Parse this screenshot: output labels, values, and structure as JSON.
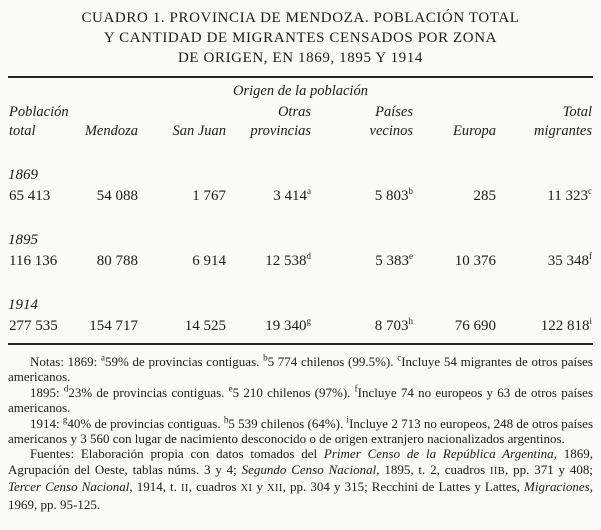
{
  "title": {
    "lines": [
      "CUADRO 1. PROVINCIA DE MENDOZA. POBLACIÓN TOTAL",
      "Y CANTIDAD DE MIGRANTES CENSADOS POR ZONA",
      "DE ORIGEN, EN 1869, 1895 Y 1914"
    ]
  },
  "table": {
    "span_header": "Origen de la población",
    "columns": [
      {
        "top": "Población",
        "bottom": "total"
      },
      {
        "top": "",
        "bottom": "Mendoza"
      },
      {
        "top": "",
        "bottom": "San Juan"
      },
      {
        "top": "Otras",
        "bottom": "provincias"
      },
      {
        "top": "Países",
        "bottom": "vecinos"
      },
      {
        "top": "",
        "bottom": "Europa"
      },
      {
        "top": "Total",
        "bottom": "migrantes"
      }
    ],
    "rows": [
      {
        "year": "1869",
        "cells": [
          {
            "value": "65 413",
            "sup": ""
          },
          {
            "value": "54 088",
            "sup": ""
          },
          {
            "value": "1 767",
            "sup": ""
          },
          {
            "value": "3 414",
            "sup": "a"
          },
          {
            "value": "5 803",
            "sup": "b"
          },
          {
            "value": "285",
            "sup": ""
          },
          {
            "value": "11 323",
            "sup": "c"
          }
        ]
      },
      {
        "year": "1895",
        "cells": [
          {
            "value": "116 136",
            "sup": ""
          },
          {
            "value": "80 788",
            "sup": ""
          },
          {
            "value": "6 914",
            "sup": ""
          },
          {
            "value": "12 538",
            "sup": "d"
          },
          {
            "value": "5 383",
            "sup": "e"
          },
          {
            "value": "10 376",
            "sup": ""
          },
          {
            "value": "35 348",
            "sup": "f"
          }
        ]
      },
      {
        "year": "1914",
        "cells": [
          {
            "value": "277 535",
            "sup": ""
          },
          {
            "value": "154 717",
            "sup": ""
          },
          {
            "value": "14 525",
            "sup": ""
          },
          {
            "value": "19 340",
            "sup": "g"
          },
          {
            "value": "8 703",
            "sup": "h"
          },
          {
            "value": "76 690",
            "sup": ""
          },
          {
            "value": "122 818",
            "sup": "i"
          }
        ]
      }
    ]
  },
  "notes": [
    [
      {
        "t": "Notas: 1869: ",
        "s": "n"
      },
      {
        "t": "a",
        "s": "sup"
      },
      {
        "t": "59% de provincias contiguas. ",
        "s": "n"
      },
      {
        "t": "b",
        "s": "sup"
      },
      {
        "t": "5 774 chilenos (99.5%). ",
        "s": "n"
      },
      {
        "t": "c",
        "s": "sup"
      },
      {
        "t": "Incluye 54 migrantes de otros países americanos.",
        "s": "n"
      }
    ],
    [
      {
        "t": "1895: ",
        "s": "n"
      },
      {
        "t": "d",
        "s": "sup"
      },
      {
        "t": "23% de provincias contiguas. ",
        "s": "n"
      },
      {
        "t": "e",
        "s": "sup"
      },
      {
        "t": "5 210 chilenos (97%). ",
        "s": "n"
      },
      {
        "t": "f",
        "s": "sup"
      },
      {
        "t": "Incluye 74 no europeos y 63 de otros países americanos.",
        "s": "n"
      }
    ],
    [
      {
        "t": "1914: ",
        "s": "n"
      },
      {
        "t": "g",
        "s": "sup"
      },
      {
        "t": "40% de provincias contiguas. ",
        "s": "n"
      },
      {
        "t": "h",
        "s": "sup"
      },
      {
        "t": "5 539 chilenos (64%). ",
        "s": "n"
      },
      {
        "t": "i",
        "s": "sup"
      },
      {
        "t": "Incluye 2 713 no europeos, 248 de otros países americanos y 3 560 con lugar de nacimiento desconocido o de origen extranjero nacionalizados argentinos.",
        "s": "n"
      }
    ],
    [
      {
        "t": "Fuentes: Elaboración propia con datos tomados del ",
        "s": "n"
      },
      {
        "t": "Primer Censo de la República Argentina",
        "s": "i"
      },
      {
        "t": ", 1869, Agrupación del Oeste, tablas núms. 3 y 4; ",
        "s": "n"
      },
      {
        "t": "Segundo Censo Nacional",
        "s": "i"
      },
      {
        "t": ", 1895, t. 2, cuadros ",
        "s": "n"
      },
      {
        "t": "IIB",
        "s": "sc"
      },
      {
        "t": ", pp. 371 y 408; ",
        "s": "n"
      },
      {
        "t": "Tercer Censo Nacional",
        "s": "i"
      },
      {
        "t": ", 1914, t. ",
        "s": "n"
      },
      {
        "t": "II",
        "s": "sc"
      },
      {
        "t": ", cuadros ",
        "s": "n"
      },
      {
        "t": "XI",
        "s": "sc"
      },
      {
        "t": " y ",
        "s": "n"
      },
      {
        "t": "XII",
        "s": "sc"
      },
      {
        "t": ", pp. 304 y 315; Recchini de Lattes y Lattes, ",
        "s": "n"
      },
      {
        "t": "Migraciones",
        "s": "i"
      },
      {
        "t": ", 1969, pp. 95-125.",
        "s": "n"
      }
    ]
  ]
}
